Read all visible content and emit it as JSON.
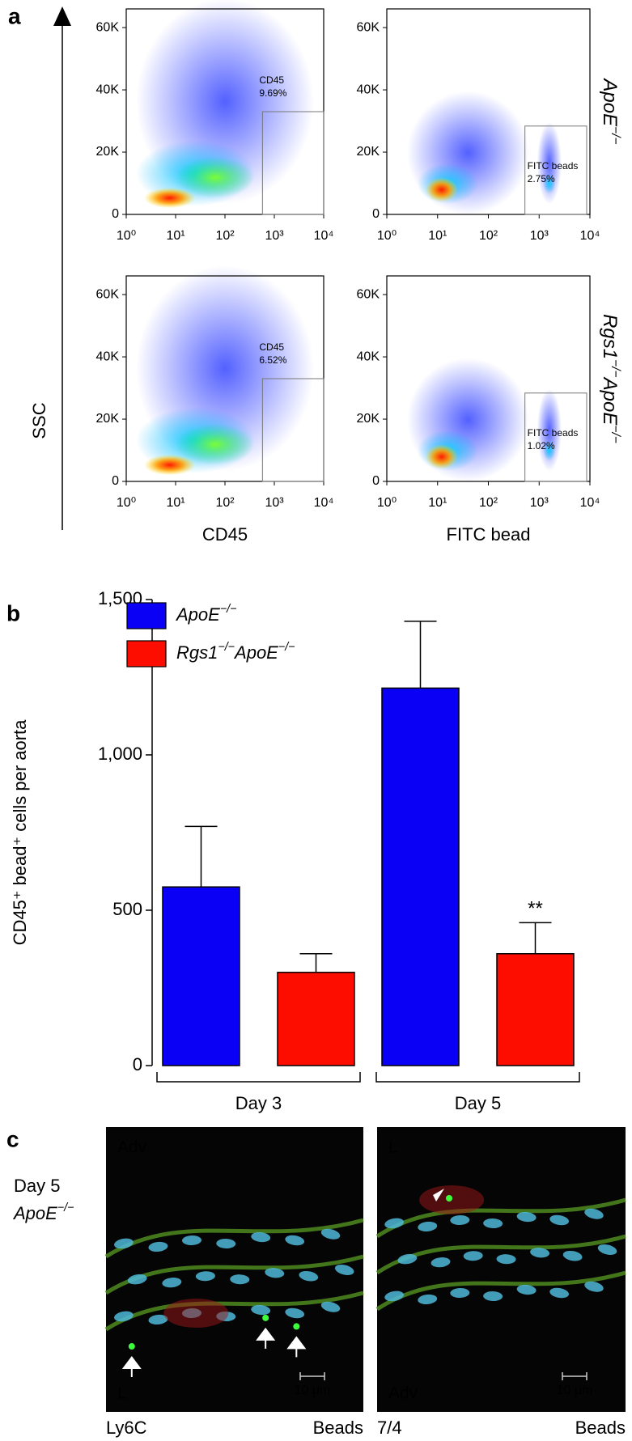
{
  "panel_labels": [
    "a",
    "b",
    "c"
  ],
  "panel_a": {
    "y_label": "SSC",
    "x_labels": [
      "CD45",
      "FITC bead"
    ],
    "row_labels": [
      {
        "text": "ApoE−/−",
        "color": "#1d3fd6"
      },
      {
        "text": "Rgs1−/−ApoE−/−",
        "color": "#e3211c"
      }
    ]
  },
  "chart_data": [
    {
      "type": "density",
      "xscale": "log",
      "xlim": [
        1,
        10000
      ],
      "ylim": [
        0,
        66000
      ],
      "xticks": [
        {
          "value": 1,
          "label": "10⁰"
        },
        {
          "value": 10,
          "label": "10¹"
        },
        {
          "value": 100,
          "label": "10²"
        },
        {
          "value": 1000,
          "label": "10³"
        },
        {
          "value": 10000,
          "label": "10⁴"
        }
      ],
      "yticks": [
        0,
        {
          "value": 20000,
          "label": "20K"
        },
        {
          "value": 40000,
          "label": "40K"
        },
        {
          "value": 60000,
          "label": "60K"
        }
      ],
      "gate": {
        "name": "CD45",
        "percent": "9.69%"
      }
    },
    {
      "type": "density",
      "xscale": "log",
      "xlim": [
        1,
        10000
      ],
      "ylim": [
        0,
        66000
      ],
      "xticks": [
        {
          "value": 1,
          "label": "10⁰"
        },
        {
          "value": 10,
          "label": "10¹"
        },
        {
          "value": 100,
          "label": "10²"
        },
        {
          "value": 1000,
          "label": "10³"
        },
        {
          "value": 10000,
          "label": "10⁴"
        }
      ],
      "yticks": [
        0,
        {
          "value": 20000,
          "label": "20K"
        },
        {
          "value": 40000,
          "label": "40K"
        },
        {
          "value": 60000,
          "label": "60K"
        }
      ],
      "gate": {
        "name": "FITC beads",
        "percent": "2.75%"
      }
    },
    {
      "type": "density",
      "xscale": "log",
      "xlim": [
        1,
        10000
      ],
      "ylim": [
        0,
        66000
      ],
      "xticks": [
        {
          "value": 1,
          "label": "10⁰"
        },
        {
          "value": 10,
          "label": "10¹"
        },
        {
          "value": 100,
          "label": "10²"
        },
        {
          "value": 1000,
          "label": "10³"
        },
        {
          "value": 10000,
          "label": "10⁴"
        }
      ],
      "yticks": [
        0,
        {
          "value": 20000,
          "label": "20K"
        },
        {
          "value": 40000,
          "label": "40K"
        },
        {
          "value": 60000,
          "label": "60K"
        }
      ],
      "gate": {
        "name": "CD45",
        "percent": "6.52%"
      }
    },
    {
      "type": "density",
      "xscale": "log",
      "xlim": [
        1,
        10000
      ],
      "ylim": [
        0,
        66000
      ],
      "xticks": [
        {
          "value": 1,
          "label": "10⁰"
        },
        {
          "value": 10,
          "label": "10¹"
        },
        {
          "value": 100,
          "label": "10²"
        },
        {
          "value": 1000,
          "label": "10³"
        },
        {
          "value": 10000,
          "label": "10⁴"
        }
      ],
      "yticks": [
        0,
        {
          "value": 20000,
          "label": "20K"
        },
        {
          "value": 40000,
          "label": "40K"
        },
        {
          "value": 60000,
          "label": "60K"
        }
      ],
      "gate": {
        "name": "FITC beads",
        "percent": "1.02%"
      }
    },
    {
      "type": "bar",
      "ylabel": "CD45⁺ bead⁺ cells per aorta",
      "categories": [
        "Day 3",
        "Day 5"
      ],
      "series": [
        {
          "name": "ApoE−/−",
          "color": "#0a00f5",
          "values": [
            575,
            1215
          ],
          "errors": [
            195,
            215
          ]
        },
        {
          "name": "Rgs1−/−ApoE−/−",
          "color": "#fc0d00",
          "values": [
            300,
            360
          ],
          "errors": [
            60,
            100
          ],
          "annotations": [
            null,
            "**"
          ]
        }
      ],
      "ylim": [
        0,
        1500
      ],
      "yticks": [
        0,
        500,
        {
          "value": 1000,
          "label": "1,000"
        },
        {
          "value": 1500,
          "label": "1,500"
        }
      ],
      "legend": "upper left"
    }
  ],
  "panel_c": {
    "row_label": [
      "Day 5",
      "ApoE−/−"
    ],
    "images": [
      {
        "top_label": "Adv",
        "bottom_label": "L",
        "scale_bar": "10 μm",
        "stain_red": "Ly6C",
        "stain_green": "Beads"
      },
      {
        "top_label": "L",
        "bottom_label": "Adv",
        "scale_bar": "10 μm",
        "stain_red": "7/4",
        "stain_green": "Beads"
      }
    ]
  }
}
